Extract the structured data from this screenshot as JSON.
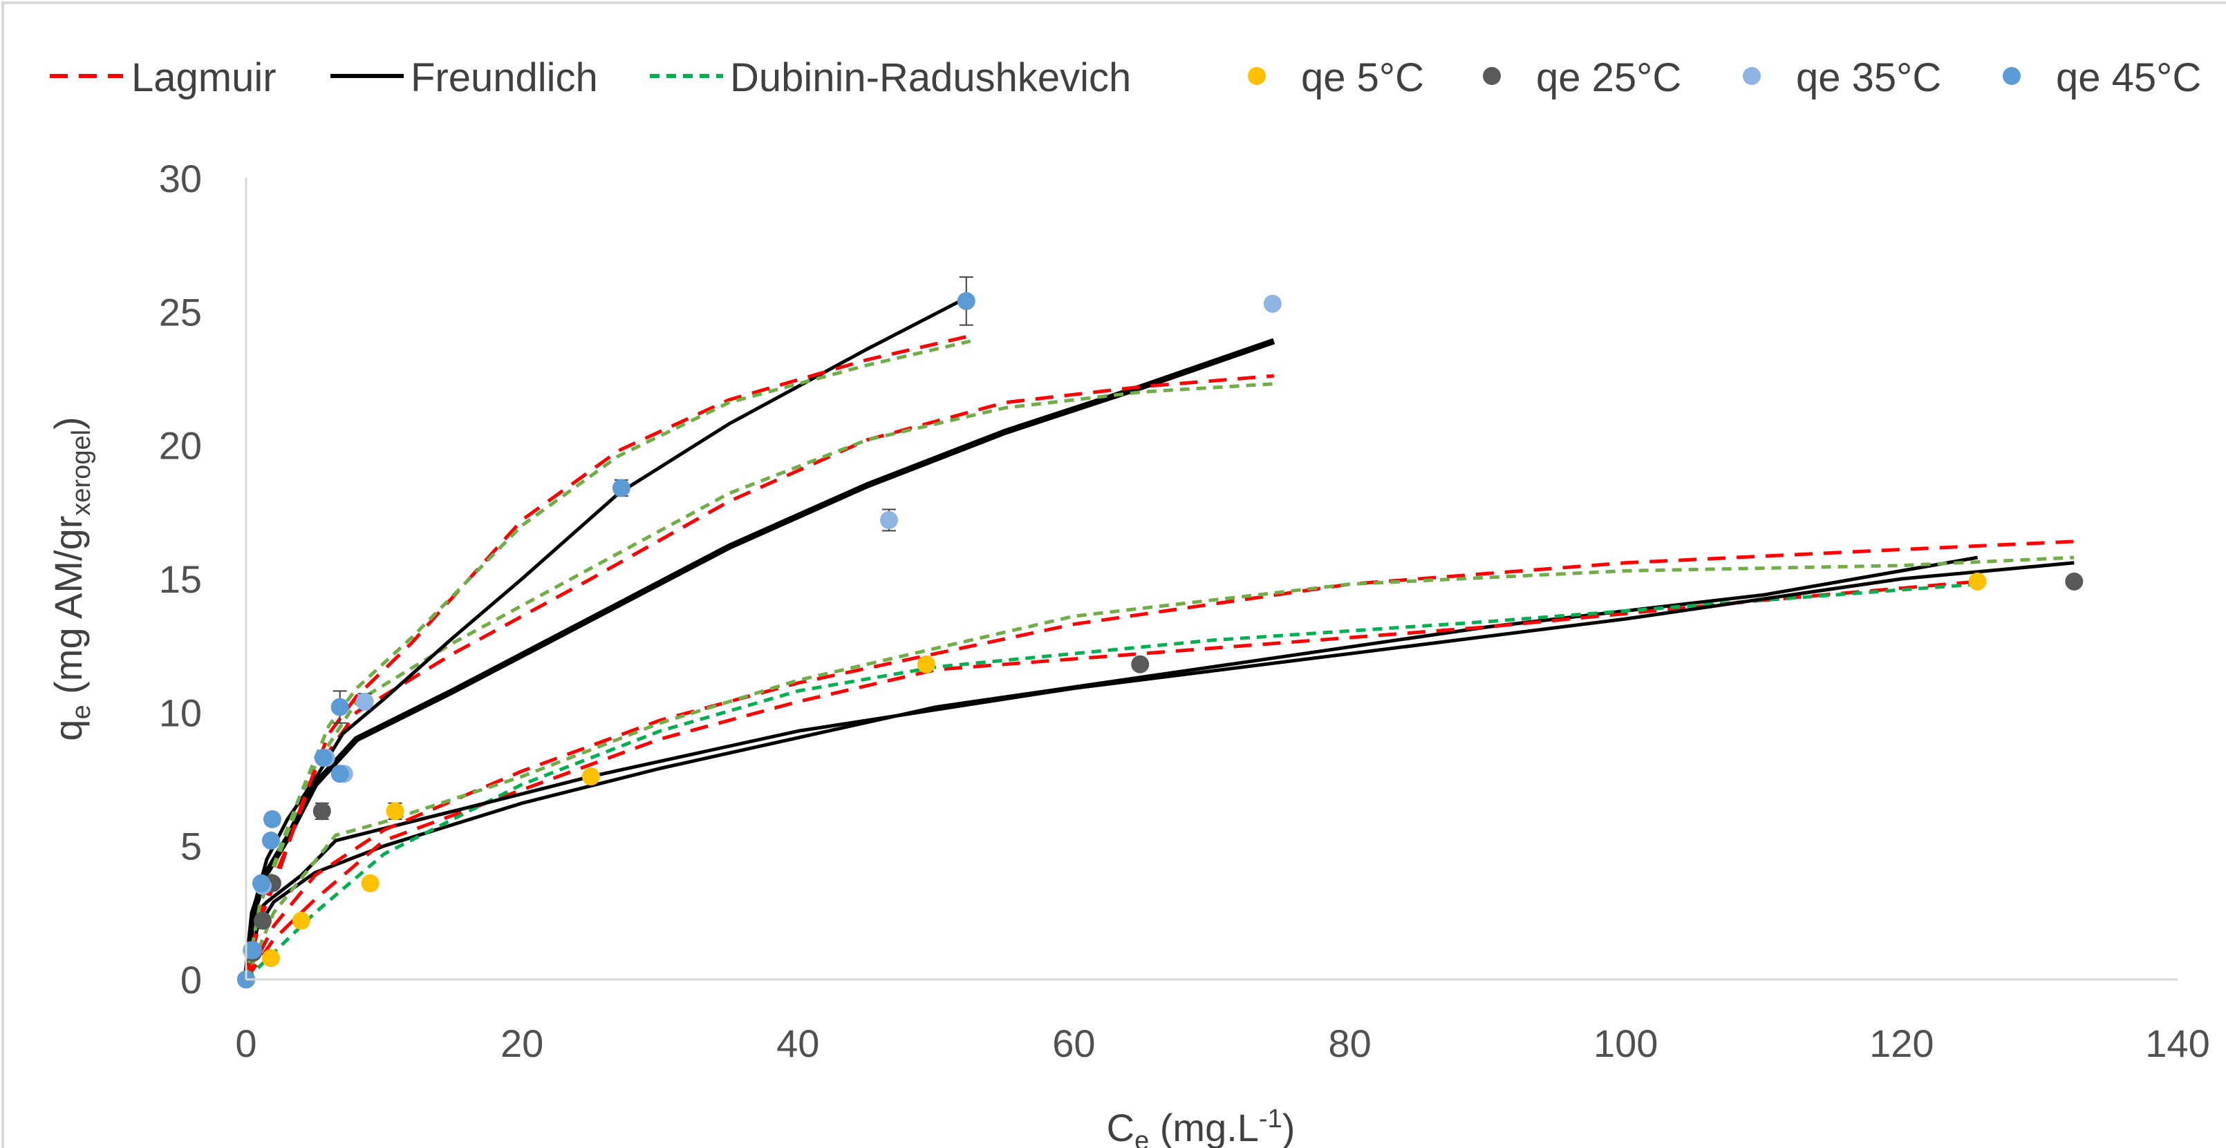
{
  "chart_data": {
    "type": "scatter",
    "title": "",
    "xlabel": {
      "main": "C",
      "sub": "e",
      "unit": " (mg.L",
      "sup": "-1",
      "close": ")"
    },
    "ylabel": {
      "main": "q",
      "sub": "e",
      "unit": " (mg AM/gr",
      "sub2": "xerogel",
      "close": ")"
    },
    "xlim": [
      0,
      140
    ],
    "ylim": [
      0,
      30
    ],
    "x_ticks": [
      "0",
      "20",
      "40",
      "60",
      "80",
      "100",
      "120",
      "140"
    ],
    "y_ticks": [
      "0",
      "5",
      "10",
      "15",
      "20",
      "25",
      "30"
    ],
    "grid": false,
    "legend_position": "top",
    "legend": [
      {
        "label": "Lagmuir",
        "kind": "line",
        "color": "#ff0000",
        "dash": "dash"
      },
      {
        "label": "Freundlich",
        "kind": "line",
        "color": "#000000",
        "dash": "solid"
      },
      {
        "label": "Dubinin-Radushkevich",
        "kind": "line",
        "color": "#00b050",
        "dash": "short-dash"
      },
      {
        "label": "qe 5°C",
        "kind": "marker",
        "color": "#ffc000"
      },
      {
        "label": "qe 25°C",
        "kind": "marker",
        "color": "#595959"
      },
      {
        "label": "qe 35°C",
        "kind": "marker",
        "color": "#8db4e2"
      },
      {
        "label": "qe 45°C",
        "kind": "marker",
        "color": "#5b9bd5"
      }
    ],
    "scatter_series": [
      {
        "name": "qe 5°C",
        "color": "#ffc000",
        "points": [
          [
            0,
            0
          ],
          [
            1.8,
            0.8
          ],
          [
            4,
            2.2
          ],
          [
            9,
            3.6
          ],
          [
            10.8,
            6.3
          ],
          [
            25,
            7.6
          ],
          [
            49.3,
            11.8
          ],
          [
            125.5,
            14.9
          ]
        ],
        "errors": [
          0,
          0,
          0,
          0,
          0.3,
          0,
          0,
          0
        ]
      },
      {
        "name": "qe 25°C",
        "color": "#595959",
        "points": [
          [
            0,
            0
          ],
          [
            0.5,
            1.0
          ],
          [
            1.2,
            2.2
          ],
          [
            1.9,
            3.6
          ],
          [
            5.5,
            6.3
          ],
          [
            64.8,
            11.8
          ],
          [
            132.5,
            14.9
          ]
        ],
        "errors": [
          0,
          0,
          0,
          0,
          0.3,
          0,
          0
        ]
      },
      {
        "name": "qe 35°C",
        "color": "#8db4e2",
        "points": [
          [
            0,
            0
          ],
          [
            0.4,
            1.1
          ],
          [
            1.2,
            3.5
          ],
          [
            5.8,
            8.3
          ],
          [
            7.1,
            7.7
          ],
          [
            8.6,
            10.4
          ],
          [
            46.6,
            17.2
          ],
          [
            74.4,
            25.3
          ]
        ],
        "errors": [
          0,
          0,
          0,
          0,
          0,
          0.3,
          0.4,
          0
        ]
      },
      {
        "name": "qe 45°C",
        "color": "#5b9bd5",
        "points": [
          [
            0,
            0
          ],
          [
            0.5,
            1.1
          ],
          [
            1.1,
            3.6
          ],
          [
            1.8,
            5.2
          ],
          [
            1.9,
            6.0
          ],
          [
            5.6,
            8.3
          ],
          [
            6.8,
            7.7
          ],
          [
            6.8,
            10.2
          ],
          [
            27.2,
            18.4
          ],
          [
            52.2,
            25.4
          ]
        ],
        "errors": [
          0,
          0,
          0,
          0,
          0.2,
          0,
          0,
          0.6,
          0.3,
          0.9
        ]
      }
    ],
    "fit_curves": [
      {
        "model": "Freundlich",
        "set": "5°C",
        "color": "#000000",
        "dash": "solid",
        "width": 5,
        "points": [
          [
            0,
            0
          ],
          [
            0.8,
            1.9
          ],
          [
            2,
            2.9
          ],
          [
            5,
            4.0
          ],
          [
            10,
            5.0
          ],
          [
            20,
            6.6
          ],
          [
            30,
            7.9
          ],
          [
            50,
            10.2
          ],
          [
            70,
            11.7
          ],
          [
            90,
            13.2
          ],
          [
            110,
            14.4
          ],
          [
            125.5,
            15.8
          ]
        ]
      },
      {
        "model": "Lagmuir",
        "set": "5°C",
        "color": "#ff0000",
        "dash": "dash",
        "width": 5,
        "points": [
          [
            0,
            0
          ],
          [
            2,
            1.5
          ],
          [
            5,
            3.0
          ],
          [
            10,
            5.2
          ],
          [
            20,
            7.1
          ],
          [
            30,
            9.0
          ],
          [
            40,
            10.4
          ],
          [
            50,
            11.6
          ],
          [
            70,
            12.4
          ],
          [
            90,
            13.2
          ],
          [
            110,
            14.2
          ],
          [
            125.5,
            14.9
          ]
        ]
      },
      {
        "model": "Dubinin-Radushkevich",
        "set": "5°C",
        "color": "#00b050",
        "dash": "short-dash",
        "width": 5,
        "points": [
          [
            0,
            0
          ],
          [
            2,
            1.0
          ],
          [
            5,
            2.5
          ],
          [
            10,
            4.7
          ],
          [
            20,
            7.3
          ],
          [
            30,
            9.3
          ],
          [
            40,
            10.8
          ],
          [
            50,
            11.7
          ],
          [
            70,
            12.7
          ],
          [
            90,
            13.4
          ],
          [
            110,
            14.2
          ],
          [
            125.5,
            14.8
          ]
        ]
      },
      {
        "model": "Freundlich",
        "set": "25°C",
        "color": "#000000",
        "dash": "solid",
        "width": 5,
        "points": [
          [
            0,
            0
          ],
          [
            0.5,
            2.4
          ],
          [
            1.5,
            2.9
          ],
          [
            4,
            3.9
          ],
          [
            6.5,
            5.2
          ],
          [
            15,
            6.3
          ],
          [
            25,
            7.6
          ],
          [
            40,
            9.3
          ],
          [
            60,
            10.9
          ],
          [
            80,
            12.2
          ],
          [
            100,
            13.5
          ],
          [
            120,
            15.0
          ],
          [
            132.5,
            15.6
          ]
        ]
      },
      {
        "model": "Lagmuir",
        "set": "25°C",
        "color": "#ff0000",
        "dash": "dash",
        "width": 5,
        "points": [
          [
            0,
            0
          ],
          [
            2,
            2.0
          ],
          [
            5,
            3.9
          ],
          [
            10,
            5.6
          ],
          [
            20,
            7.8
          ],
          [
            30,
            9.7
          ],
          [
            40,
            11.1
          ],
          [
            60,
            13.3
          ],
          [
            80,
            14.8
          ],
          [
            100,
            15.6
          ],
          [
            120,
            16.1
          ],
          [
            132.5,
            16.4
          ]
        ]
      },
      {
        "model": "Dubinin-Radushkevich",
        "set": "25°C",
        "color": "#70ad47",
        "dash": "short-dash",
        "width": 5,
        "points": [
          [
            0,
            0
          ],
          [
            2,
            2.5
          ],
          [
            6.5,
            5.4
          ],
          [
            10,
            5.9
          ],
          [
            20,
            7.6
          ],
          [
            30,
            9.6
          ],
          [
            40,
            11.2
          ],
          [
            60,
            13.6
          ],
          [
            80,
            14.8
          ],
          [
            100,
            15.3
          ],
          [
            120,
            15.5
          ],
          [
            132.5,
            15.8
          ]
        ]
      },
      {
        "model": "Freundlich",
        "set": "35°C",
        "color": "#000000",
        "dash": "solid",
        "width": 9,
        "points": [
          [
            0,
            0
          ],
          [
            0.5,
            2.5
          ],
          [
            1.5,
            4.0
          ],
          [
            3,
            5.3
          ],
          [
            5,
            7.3
          ],
          [
            8,
            9.0
          ],
          [
            15,
            10.8
          ],
          [
            25,
            13.5
          ],
          [
            35,
            16.2
          ],
          [
            45,
            18.5
          ],
          [
            55,
            20.5
          ],
          [
            65,
            22.2
          ],
          [
            74.5,
            23.9
          ]
        ]
      },
      {
        "model": "Lagmuir",
        "set": "35°C",
        "color": "#ff0000",
        "dash": "dash",
        "width": 5,
        "points": [
          [
            0,
            0
          ],
          [
            1,
            2.5
          ],
          [
            3,
            5.0
          ],
          [
            5,
            7.8
          ],
          [
            8,
            10.0
          ],
          [
            15,
            12.2
          ],
          [
            25,
            15.0
          ],
          [
            35,
            17.9
          ],
          [
            45,
            20.2
          ],
          [
            55,
            21.6
          ],
          [
            65,
            22.2
          ],
          [
            74.5,
            22.6
          ]
        ]
      },
      {
        "model": "Dubinin-Radushkevich",
        "set": "35°C",
        "color": "#70ad47",
        "dash": "short-dash",
        "width": 5,
        "points": [
          [
            0,
            0
          ],
          [
            1,
            2.8
          ],
          [
            3,
            5.5
          ],
          [
            5,
            8.0
          ],
          [
            8,
            10.4
          ],
          [
            15,
            12.6
          ],
          [
            25,
            15.4
          ],
          [
            35,
            18.2
          ],
          [
            45,
            20.2
          ],
          [
            55,
            21.4
          ],
          [
            65,
            22.0
          ],
          [
            74.5,
            22.3
          ]
        ]
      },
      {
        "model": "Freundlich",
        "set": "45°C",
        "color": "#000000",
        "dash": "solid",
        "width": 5,
        "points": [
          [
            0,
            0
          ],
          [
            0.5,
            2.6
          ],
          [
            1.5,
            4.5
          ],
          [
            3,
            6.0
          ],
          [
            5,
            7.5
          ],
          [
            7,
            9.2
          ],
          [
            10,
            10.5
          ],
          [
            15,
            12.8
          ],
          [
            20,
            15.0
          ],
          [
            27,
            18.2
          ],
          [
            35,
            20.8
          ],
          [
            45,
            23.6
          ],
          [
            52.5,
            25.6
          ]
        ]
      },
      {
        "model": "Lagmuir",
        "set": "45°C",
        "color": "#ff0000",
        "dash": "dash",
        "width": 5,
        "points": [
          [
            0,
            0
          ],
          [
            1,
            2.2
          ],
          [
            2.5,
            4.2
          ],
          [
            4,
            6.5
          ],
          [
            6,
            9.2
          ],
          [
            8,
            10.6
          ],
          [
            12,
            12.6
          ],
          [
            20,
            17.2
          ],
          [
            27,
            19.8
          ],
          [
            35,
            21.7
          ],
          [
            45,
            23.2
          ],
          [
            52.5,
            24.1
          ]
        ]
      },
      {
        "model": "Dubinin-Radushkevich",
        "set": "45°C",
        "color": "#70ad47",
        "dash": "short-dash",
        "width": 5,
        "points": [
          [
            0,
            0
          ],
          [
            1,
            2.8
          ],
          [
            2.5,
            5.0
          ],
          [
            4,
            7.0
          ],
          [
            6,
            9.5
          ],
          [
            8,
            10.9
          ],
          [
            12,
            12.8
          ],
          [
            20,
            17.0
          ],
          [
            27,
            19.6
          ],
          [
            35,
            21.6
          ],
          [
            45,
            23.0
          ],
          [
            52.5,
            23.9
          ]
        ]
      }
    ]
  }
}
